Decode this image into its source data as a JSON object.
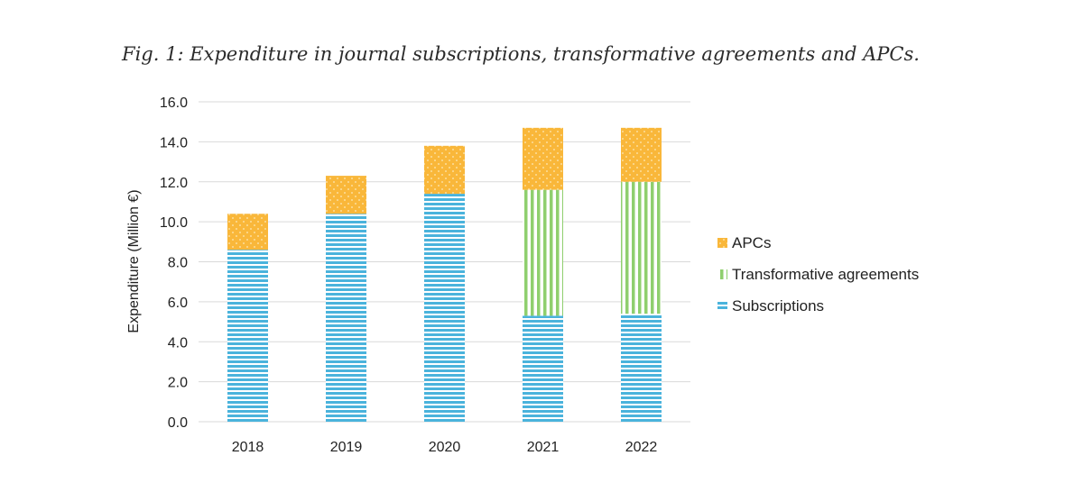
{
  "figure": {
    "caption": "Fig. 1: Expenditure in journal subscriptions, transformative agreements and APCs."
  },
  "chart_data": {
    "type": "bar",
    "stacked": true,
    "title": "Fig. 1: Expenditure in journal subscriptions, transformative agreements and APCs.",
    "xlabel": "",
    "ylabel": "Expenditure (Million €)",
    "categories": [
      "2018",
      "2019",
      "2020",
      "2021",
      "2022"
    ],
    "ylim": [
      0,
      16
    ],
    "yticks": [
      "0.0",
      "2.0",
      "4.0",
      "6.0",
      "8.0",
      "10.0",
      "12.0",
      "14.0",
      "16.0"
    ],
    "grid": true,
    "legend_position": "right",
    "series": [
      {
        "name": "Subscriptions",
        "values": [
          8.6,
          10.4,
          11.4,
          5.3,
          5.4
        ],
        "color": "#4ab3dc",
        "pattern": "horizontal-stripes"
      },
      {
        "name": "Transformative agreements",
        "values": [
          0,
          0,
          0,
          6.3,
          6.6
        ],
        "color": "#8fcf6e",
        "pattern": "vertical-stripes"
      },
      {
        "name": "APCs",
        "values": [
          1.8,
          1.9,
          2.4,
          3.1,
          2.7
        ],
        "color": "#f9b73a",
        "pattern": "dots"
      }
    ],
    "legend_order": [
      "APCs",
      "Transformative agreements",
      "Subscriptions"
    ]
  }
}
